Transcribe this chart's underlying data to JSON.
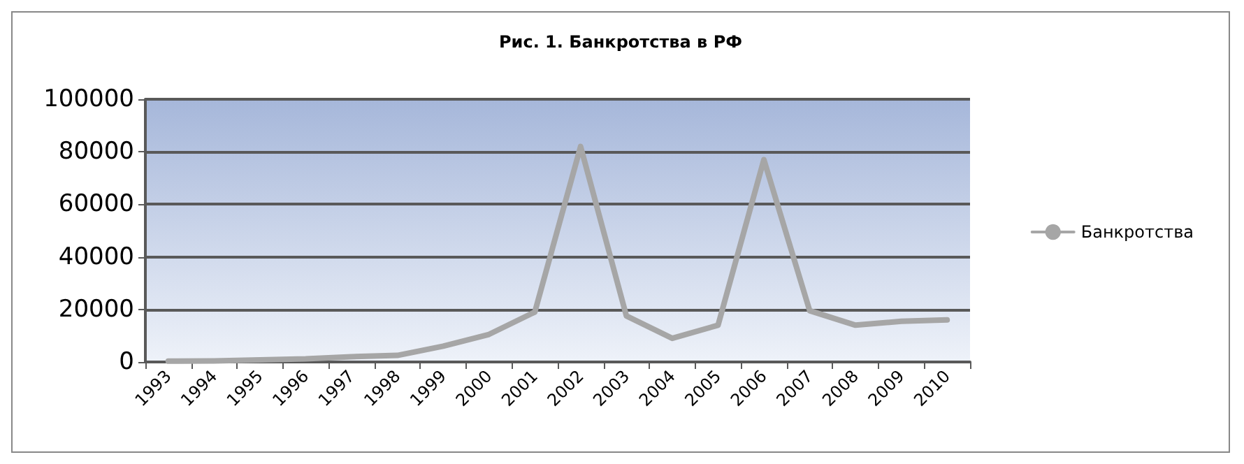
{
  "chart_data": {
    "type": "line",
    "title": "Рис. 1. Банкротства в РФ",
    "categories": [
      "1993",
      "1994",
      "1995",
      "1996",
      "1997",
      "1998",
      "1999",
      "2000",
      "2001",
      "2002",
      "2003",
      "2004",
      "2005",
      "2006",
      "2007",
      "2008",
      "2009",
      "2010"
    ],
    "series": [
      {
        "name": "Банкротства",
        "color": "#a6a6a6",
        "values": [
          300,
          400,
          800,
          1200,
          2000,
          2500,
          6000,
          10500,
          19000,
          82000,
          17500,
          9000,
          14000,
          77000,
          19500,
          14000,
          15500,
          16000
        ]
      }
    ],
    "ylim": [
      0,
      100000
    ],
    "yticks": [
      0,
      20000,
      40000,
      60000,
      80000,
      100000
    ],
    "grid": "y",
    "legend": "right",
    "marker": "none",
    "line_style": "solid"
  }
}
